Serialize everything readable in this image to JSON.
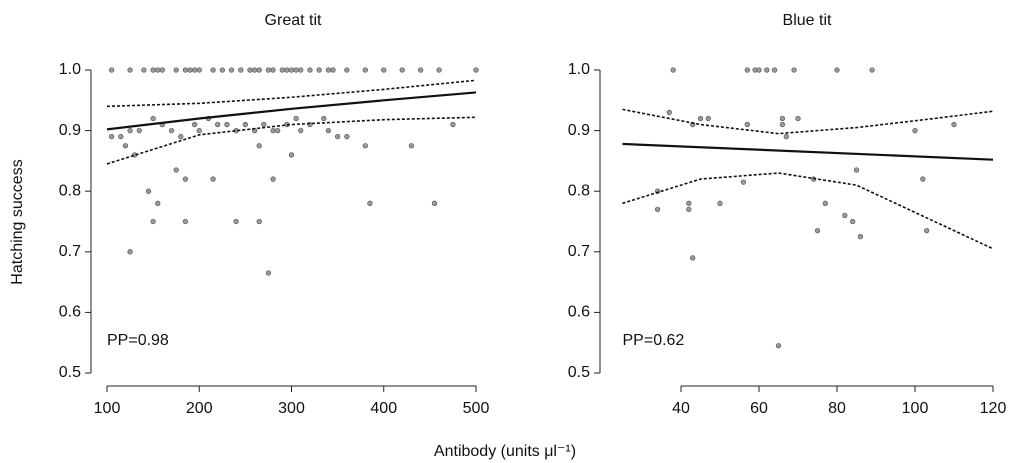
{
  "xlabel": "Antibody (units μl⁻¹)",
  "chart_data": [
    {
      "type": "scatter",
      "title": "Great tit",
      "ylabel": "Hatching success",
      "annotation": "PP=0.98",
      "xlim": [
        100,
        500
      ],
      "ylim": [
        0.5,
        1.0
      ],
      "xticks": [
        100,
        200,
        300,
        400,
        500
      ],
      "yticks": [
        0.5,
        0.6,
        0.7,
        0.8,
        0.9,
        {
          "value": 1.0,
          "label": "1.0"
        }
      ],
      "point_color": "#9a9a9a",
      "line_color": "#111111",
      "points": {
        "x": [
          105,
          125,
          140,
          150,
          155,
          160,
          175,
          185,
          190,
          195,
          200,
          215,
          225,
          235,
          245,
          255,
          260,
          265,
          275,
          280,
          290,
          295,
          300,
          305,
          310,
          320,
          330,
          340,
          345,
          360,
          380,
          400,
          420,
          440,
          460,
          500,
          105,
          115,
          120,
          125,
          130,
          125,
          135,
          145,
          150,
          150,
          155,
          160,
          170,
          175,
          180,
          185,
          185,
          195,
          200,
          210,
          215,
          220,
          230,
          240,
          240,
          250,
          260,
          265,
          265,
          270,
          275,
          280,
          280,
          285,
          295,
          300,
          305,
          310,
          320,
          335,
          340,
          350,
          360,
          380,
          385,
          430,
          455,
          475
        ],
        "y": [
          1,
          1,
          1,
          1,
          1,
          1,
          1,
          1,
          1,
          1,
          1,
          1,
          1,
          1,
          1,
          1,
          1,
          1,
          1,
          1,
          1,
          1,
          1,
          1,
          1,
          1,
          1,
          1,
          1,
          1,
          1,
          1,
          1,
          1,
          1,
          1,
          0.89,
          0.89,
          0.875,
          0.9,
          0.86,
          0.7,
          0.9,
          0.8,
          0.92,
          0.75,
          0.78,
          0.91,
          0.9,
          0.835,
          0.89,
          0.82,
          0.75,
          0.91,
          0.9,
          0.92,
          0.82,
          0.91,
          0.91,
          0.9,
          0.75,
          0.91,
          0.9,
          0.875,
          0.75,
          0.91,
          0.665,
          0.9,
          0.82,
          0.9,
          0.91,
          0.86,
          0.92,
          0.9,
          0.91,
          0.92,
          0.9,
          0.89,
          0.89,
          0.875,
          0.78,
          0.875,
          0.78,
          0.91
        ]
      },
      "fit": {
        "x": [
          100,
          200,
          300,
          400,
          500
        ],
        "y": [
          0.902,
          0.92,
          0.936,
          0.95,
          0.963
        ]
      },
      "upper": {
        "x": [
          100,
          200,
          300,
          400,
          500
        ],
        "y": [
          0.94,
          0.945,
          0.955,
          0.968,
          0.983
        ]
      },
      "lower": {
        "x": [
          100,
          200,
          300,
          400,
          500
        ],
        "y": [
          0.845,
          0.893,
          0.91,
          0.918,
          0.922
        ]
      }
    },
    {
      "type": "scatter",
      "title": "Blue tit",
      "annotation": "PP=0.62",
      "xlim": [
        25,
        120
      ],
      "ylim": [
        0.5,
        1.0
      ],
      "xticks": [
        40,
        60,
        80,
        100,
        120
      ],
      "yticks": [
        0.5,
        0.6,
        0.7,
        0.8,
        0.9,
        {
          "value": 1.0,
          "label": "1.0"
        }
      ],
      "point_color": "#9a9a9a",
      "line_color": "#111111",
      "points": {
        "x": [
          34,
          34,
          37,
          38,
          42,
          42,
          43,
          43,
          45,
          47,
          50,
          56,
          57,
          57,
          59,
          60,
          62,
          64,
          65,
          66,
          66,
          67,
          69,
          70,
          74,
          75,
          77,
          80,
          82,
          84,
          85,
          86,
          89,
          100,
          102,
          103,
          110
        ],
        "y": [
          0.8,
          0.77,
          0.93,
          1,
          0.78,
          0.77,
          0.69,
          0.91,
          0.92,
          0.92,
          0.78,
          0.815,
          0.91,
          1,
          1,
          1,
          1,
          1,
          0.545,
          0.92,
          0.91,
          0.89,
          1,
          0.92,
          0.82,
          0.735,
          0.78,
          1,
          0.76,
          0.75,
          0.835,
          0.725,
          1,
          0.9,
          0.82,
          0.735,
          0.91
        ]
      },
      "fit": {
        "x": [
          25,
          120
        ],
        "y": [
          0.878,
          0.852
        ]
      },
      "upper": {
        "x": [
          25,
          45,
          65,
          85,
          105,
          120
        ],
        "y": [
          0.935,
          0.91,
          0.895,
          0.905,
          0.92,
          0.932
        ]
      },
      "lower": {
        "x": [
          25,
          45,
          65,
          85,
          105,
          120
        ],
        "y": [
          0.78,
          0.82,
          0.83,
          0.81,
          0.75,
          0.705
        ]
      }
    }
  ]
}
